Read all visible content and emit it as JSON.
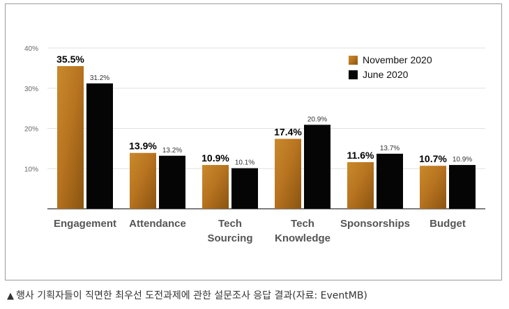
{
  "chart_data": {
    "type": "bar",
    "categories": [
      "Engagement",
      "Attendance",
      "Tech Sourcing",
      "Tech Knowledge",
      "Sponsorships",
      "Budget"
    ],
    "category_lines": [
      [
        "Engagement"
      ],
      [
        "Attendance"
      ],
      [
        "Tech",
        "Sourcing"
      ],
      [
        "Tech",
        "Knowledge"
      ],
      [
        "Sponsorships"
      ],
      [
        "Budget"
      ]
    ],
    "series": [
      {
        "name": "November 2020",
        "values": [
          35.5,
          13.9,
          10.9,
          17.4,
          11.6,
          10.7
        ],
        "labels": [
          "35.5%",
          "13.9%",
          "10.9%",
          "17.4%",
          "11.6%",
          "10.7%"
        ],
        "color": "#b8761f"
      },
      {
        "name": "June 2020",
        "values": [
          31.2,
          13.2,
          10.1,
          20.9,
          13.7,
          10.9
        ],
        "labels": [
          "31.2%",
          "13.2%",
          "10.1%",
          "20.9%",
          "13.7%",
          "10.9%"
        ],
        "color": "#050505"
      }
    ],
    "ylim": [
      0,
      40
    ],
    "yticks": [
      10,
      20,
      30,
      40
    ],
    "ytick_labels": [
      "10%",
      "20%",
      "30%",
      "40%"
    ],
    "grid": true,
    "legend": "top-right"
  },
  "caption": {
    "marker": "▲",
    "text": "행사 기획자들이 직면한 최우선 도전과제에 관한 설문조사 응답 결과(자료: EventMB)"
  }
}
